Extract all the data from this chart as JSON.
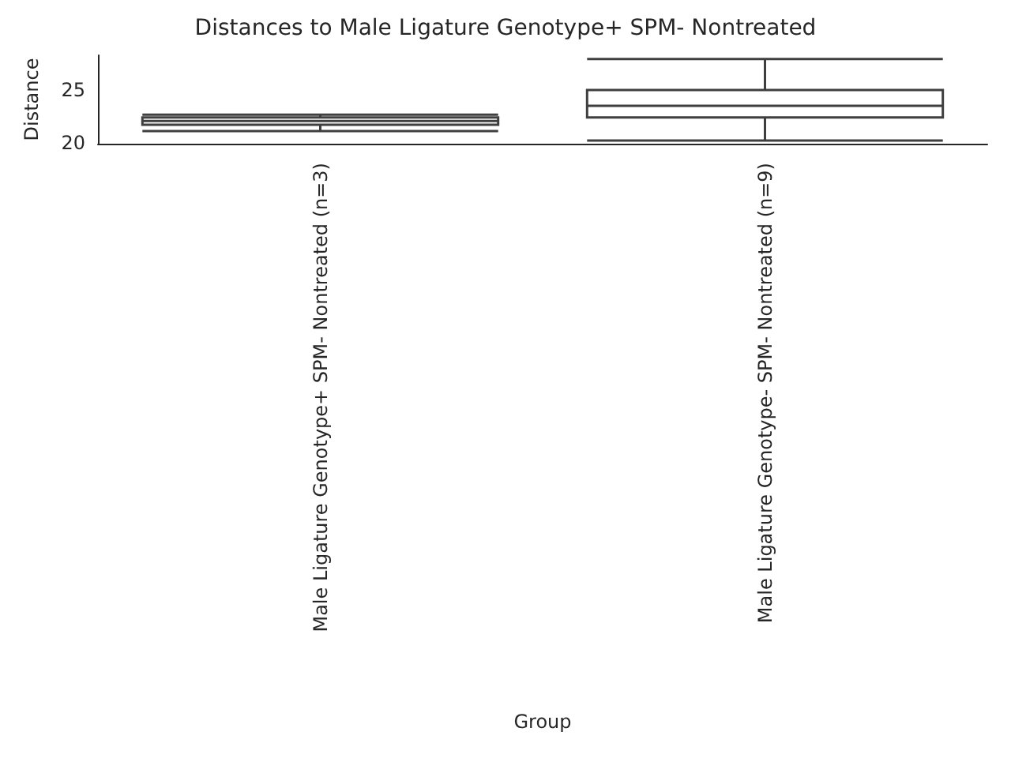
{
  "chart_data": {
    "type": "box",
    "title": "Distances to Male Ligature Genotype+ SPM- Nontreated",
    "xlabel": "Group",
    "ylabel": "Distance",
    "categories": [
      "Male Ligature Genotype+ SPM- Nontreated (n=3)",
      "Male Ligature Genotype- SPM- Nontreated (n=9)"
    ],
    "boxes": [
      {
        "low": 21.1,
        "q1": 21.7,
        "median": 22.05,
        "q3": 22.4,
        "high": 22.65
      },
      {
        "low": 20.2,
        "q1": 22.4,
        "median": 23.5,
        "q3": 25.0,
        "high": 27.95
      }
    ],
    "color": "#3f3f3f",
    "ylim": [
      19.9,
      28.3
    ],
    "yticks": [
      20,
      25
    ],
    "grid": false
  }
}
